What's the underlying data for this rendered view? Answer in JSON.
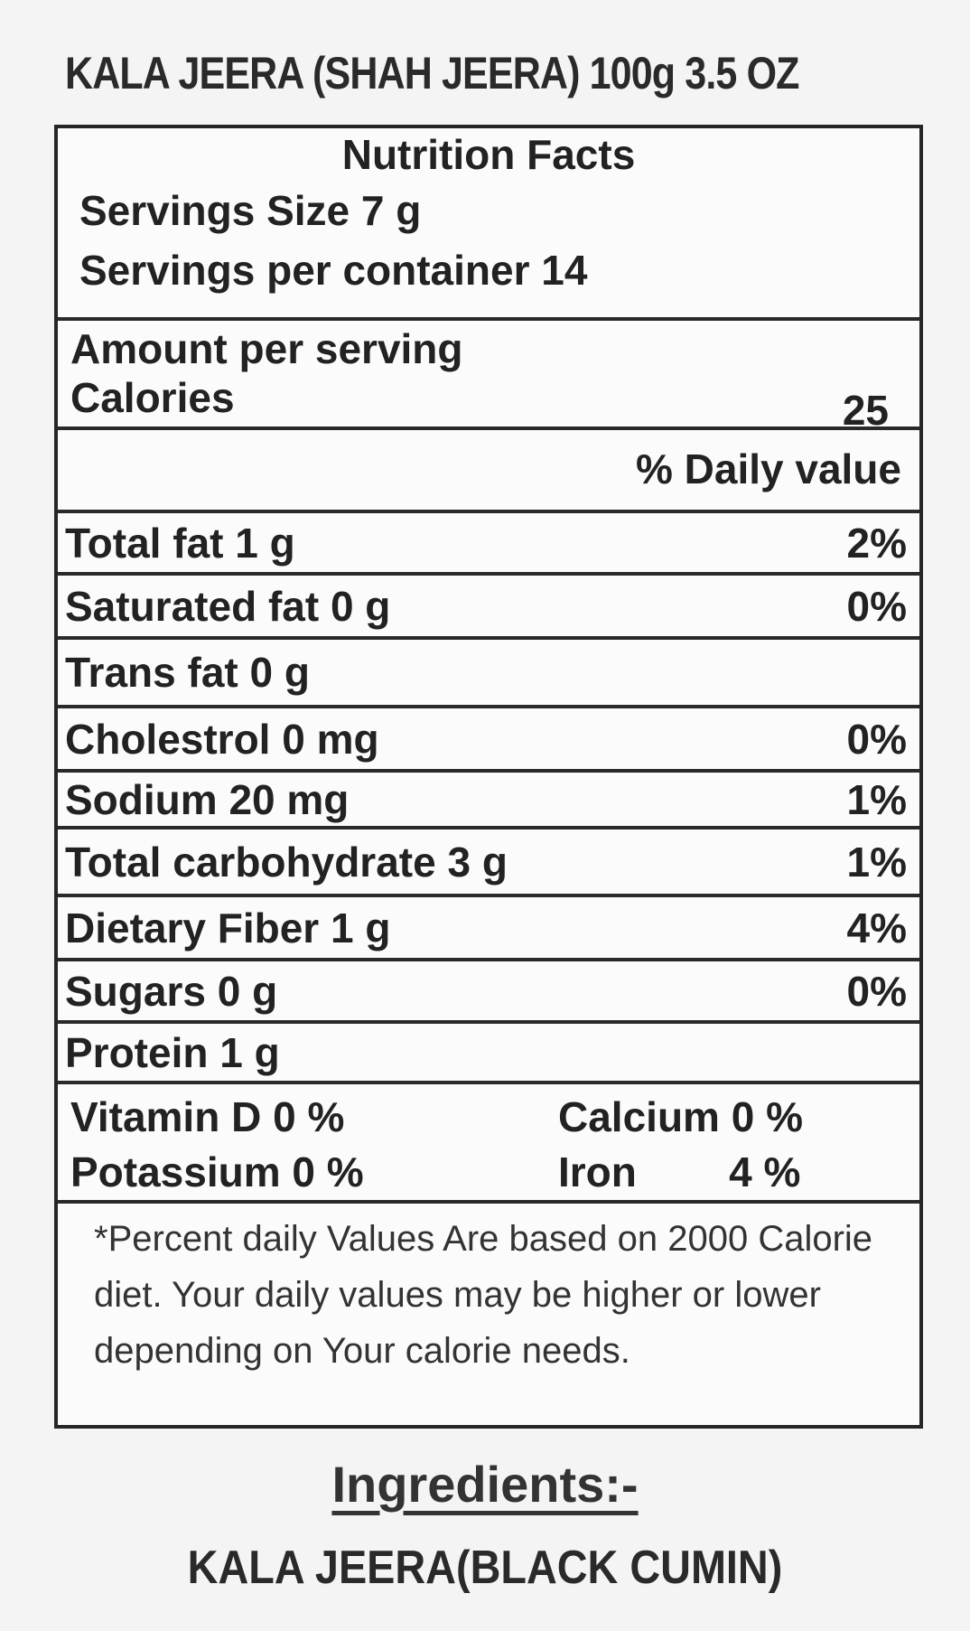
{
  "product_title": "KALA JEERA (SHAH JEERA) 100g  3.5 OZ",
  "nutrition": {
    "heading": "Nutrition Facts",
    "serving_size": "Servings Size 7 g",
    "servings_per_container": "Servings per container 14",
    "amount_per_serving": "Amount per serving",
    "calories_label": "Calories",
    "calories_value": "25",
    "daily_value_header": "% Daily value",
    "rows": [
      {
        "label": "Total fat 1 g",
        "dv": "2%"
      },
      {
        "label": "Saturated fat 0 g",
        "dv": "0%"
      },
      {
        "label": "Trans fat 0 g",
        "dv": ""
      },
      {
        "label": "Cholestrol 0 mg",
        "dv": "0%"
      },
      {
        "label": "Sodium 20 mg",
        "dv": "1%"
      },
      {
        "label": "Total carbohydrate 3 g",
        "dv": "1%"
      },
      {
        "label": "Dietary Fiber 1 g",
        "dv": "4%"
      },
      {
        "label": "Sugars 0 g",
        "dv": "0%"
      },
      {
        "label": "Protein 1 g",
        "dv": ""
      }
    ],
    "vitamins": [
      {
        "label": "Vitamin D  0 %"
      },
      {
        "label": "Calcium 0 %"
      },
      {
        "label": "Potassium  0 %"
      },
      {
        "label": "Iron        4 %"
      }
    ],
    "footnote": "*Percent daily Values Are based on 2000 Calorie diet. Your daily values may be higher or lower depending on Your calorie needs."
  },
  "ingredients": {
    "heading": "Ingredients:-",
    "text": "KALA JEERA(BLACK CUMIN)"
  }
}
